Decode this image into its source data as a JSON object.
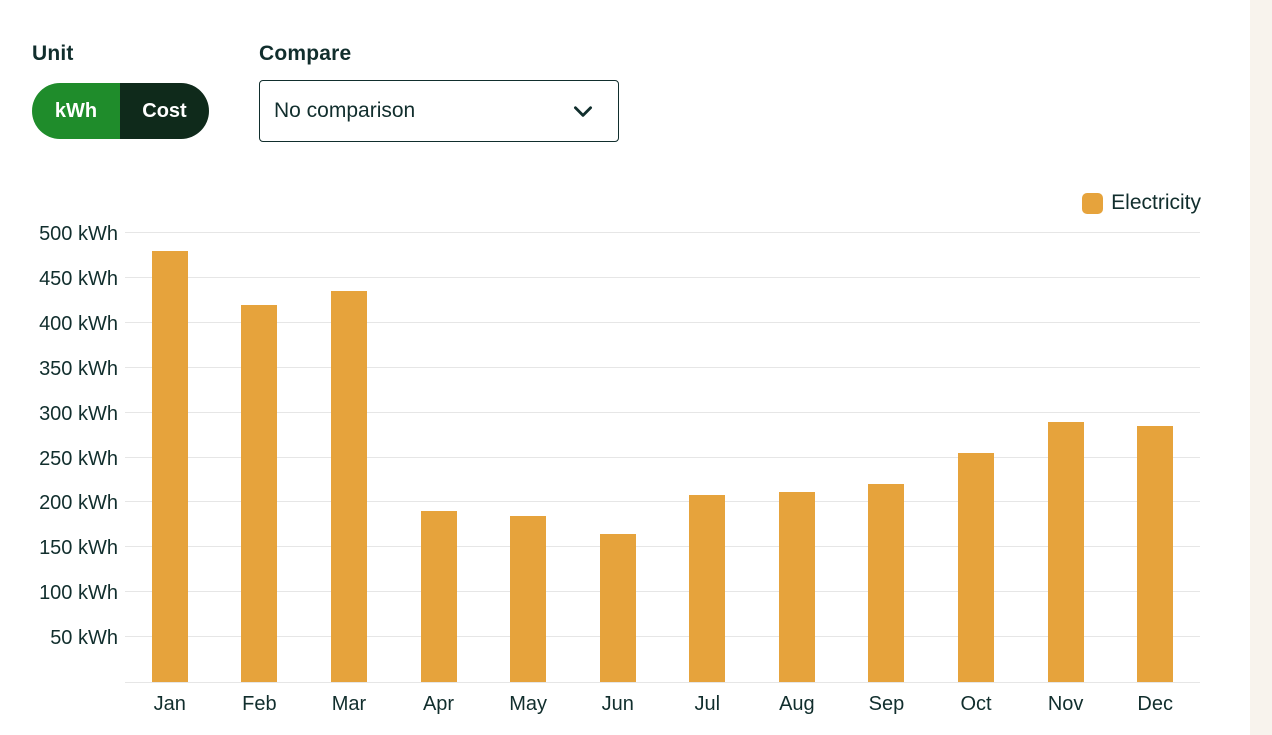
{
  "colors": {
    "accent-green": "#1f8c2b",
    "toggle-dark": "#0f2a1b",
    "ink-dark": "#112e2d",
    "bar-orange": "#e6a33c",
    "gridline": "#e6e6e6",
    "page-strip": "#f8f3ed"
  },
  "controls": {
    "unit": {
      "label": "Unit",
      "options": [
        {
          "label": "kWh",
          "selected": true
        },
        {
          "label": "Cost",
          "selected": false
        }
      ]
    },
    "compare": {
      "label": "Compare",
      "selected_option": "No comparison"
    }
  },
  "legend": {
    "items": [
      {
        "label": "Electricity",
        "color": "#e6a33c"
      }
    ]
  },
  "chart_data": {
    "type": "bar",
    "title": "",
    "unit": "kWh",
    "categories": [
      "Jan",
      "Feb",
      "Mar",
      "Apr",
      "May",
      "Jun",
      "Jul",
      "Aug",
      "Sep",
      "Oct",
      "Nov",
      "Dec"
    ],
    "series": [
      {
        "name": "Electricity",
        "values": [
          480,
          420,
          435,
          190,
          185,
          165,
          208,
          212,
          220,
          255,
          290,
          285
        ],
        "color": "#e6a33c"
      }
    ],
    "ylim": [
      0,
      500
    ],
    "yticks": [
      {
        "value": 500,
        "label": "500 kWh"
      },
      {
        "value": 450,
        "label": "450 kWh"
      },
      {
        "value": 400,
        "label": "400 kWh"
      },
      {
        "value": 350,
        "label": "350 kWh"
      },
      {
        "value": 300,
        "label": "300 kWh"
      },
      {
        "value": 250,
        "label": "250 kWh"
      },
      {
        "value": 200,
        "label": "200 kWh"
      },
      {
        "value": 150,
        "label": "150 kWh"
      },
      {
        "value": 100,
        "label": "100 kWh"
      },
      {
        "value": 50,
        "label": "50 kWh"
      }
    ],
    "grid": true,
    "legend_position": "top-right"
  }
}
